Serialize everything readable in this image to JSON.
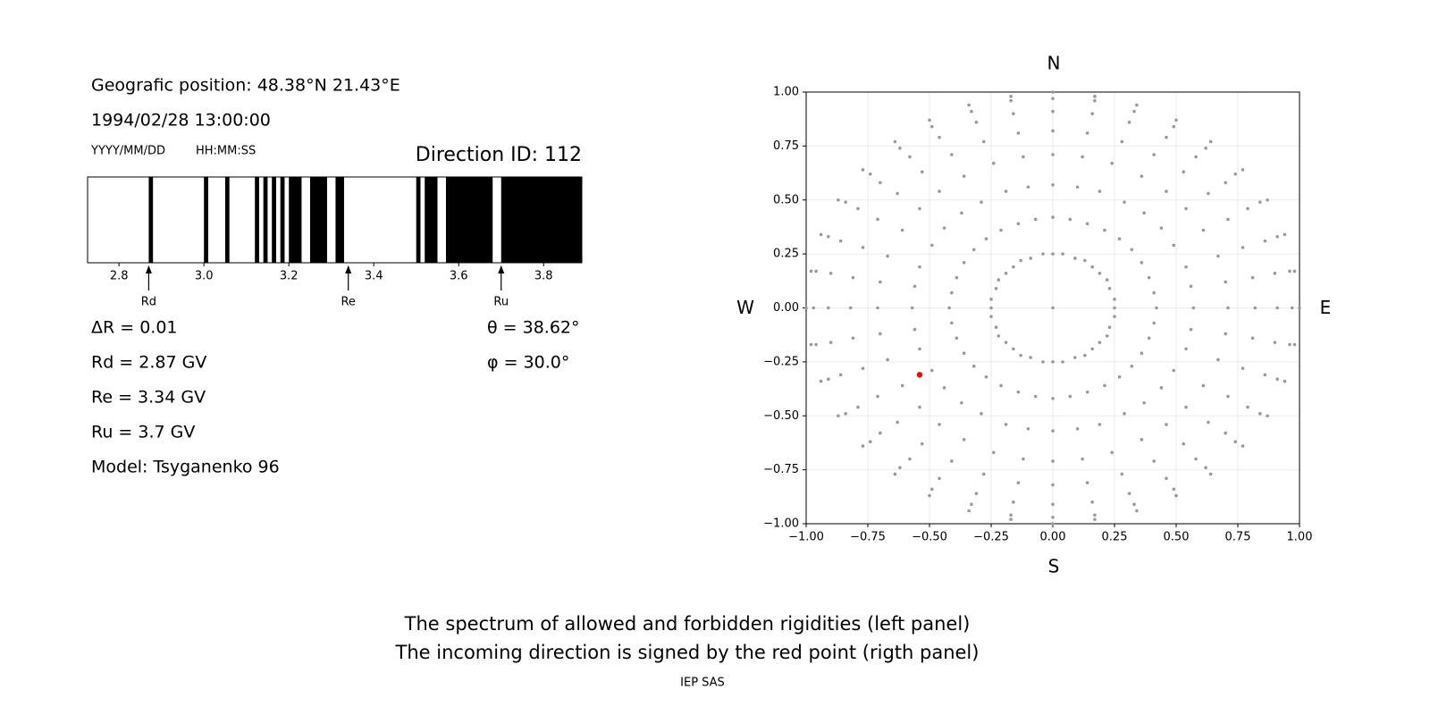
{
  "info": {
    "position": "Geografic position: 48.38°N 21.43°E",
    "datetime": "1994/02/28 13:00:00",
    "date_format": "YYYY/MM/DD",
    "time_format": "HH:MM:SS",
    "direction": "Direction ID: 112",
    "delta_r": "ΔR = 0.01",
    "rd": "Rd = 2.87 GV",
    "re": "Re = 3.34 GV",
    "ru": "Ru = 3.7 GV",
    "model": "Model: Tsyganenko 96",
    "theta": "θ = 38.62°",
    "phi": "φ = 30.0°"
  },
  "chart_data": [
    {
      "type": "spectrum",
      "xlim": [
        2.726,
        3.89
      ],
      "xticks": [
        2.8,
        {
          "value": 3,
          "label": "3.0"
        },
        3.2,
        3.4,
        3.6,
        3.8
      ],
      "color": "#000000",
      "forbidden": [
        [
          2.87,
          2.88
        ],
        [
          3.0,
          3.01
        ],
        [
          3.05,
          3.06
        ],
        [
          3.12,
          3.13
        ],
        [
          3.14,
          3.15
        ],
        [
          3.16,
          3.17
        ],
        [
          3.18,
          3.19
        ],
        [
          3.2,
          3.23
        ],
        [
          3.25,
          3.29
        ],
        [
          3.31,
          3.33
        ],
        [
          3.5,
          3.51
        ],
        [
          3.52,
          3.55
        ],
        [
          3.57,
          3.68
        ],
        [
          3.7,
          3.89
        ]
      ],
      "markers": [
        {
          "label": "Rd",
          "value": 2.87
        },
        {
          "label": "Re",
          "value": 3.34
        },
        {
          "label": "Ru",
          "value": 3.7
        }
      ]
    },
    {
      "type": "scatter",
      "labels": {
        "top": "N",
        "bottom": "S",
        "left": "W",
        "right": "E"
      },
      "xlim": [
        -1,
        1
      ],
      "ylim": [
        -1,
        1
      ],
      "xticks": [
        {
          "value": -1,
          "label": "−1.00"
        },
        {
          "value": -0.75,
          "label": "−0.75"
        },
        {
          "value": -0.5,
          "label": "−0.50"
        },
        {
          "value": -0.25,
          "label": "−0.25"
        },
        {
          "value": 0,
          "label": "0.00"
        },
        {
          "value": 0.25,
          "label": "0.25"
        },
        {
          "value": 0.5,
          "label": "0.50"
        },
        {
          "value": 0.75,
          "label": "0.75"
        },
        {
          "value": 1,
          "label": "1.00"
        }
      ],
      "yticks": [
        {
          "value": -1,
          "label": "−1.00"
        },
        {
          "value": -0.75,
          "label": "−0.75"
        },
        {
          "value": -0.5,
          "label": "−0.50"
        },
        {
          "value": -0.25,
          "label": "−0.25"
        },
        {
          "value": 0,
          "label": "0.00"
        },
        {
          "value": 0.25,
          "label": "0.25"
        },
        {
          "value": 0.5,
          "label": "0.50"
        },
        {
          "value": 0.75,
          "label": "0.75"
        },
        {
          "value": 1,
          "label": "1.00"
        }
      ],
      "grid": true,
      "color": "#999999",
      "x": [
        0.25,
        0.42,
        0.57,
        0.71,
        0.82,
        0.91,
        0.97,
        1,
        0.25,
        0.41,
        0.56,
        0.7,
        0.81,
        0.9,
        0.96,
        0.98,
        0.23,
        0.39,
        0.54,
        0.67,
        0.77,
        0.86,
        0.91,
        0.94,
        0.22,
        0.36,
        0.49,
        0.61,
        0.71,
        0.79,
        0.84,
        0.87,
        0.19,
        0.32,
        0.44,
        0.54,
        0.63,
        0.7,
        0.74,
        0.77,
        0.16,
        0.27,
        0.37,
        0.46,
        0.53,
        0.58,
        0.62,
        0.64,
        0.13,
        0.21,
        0.29,
        0.36,
        0.41,
        0.46,
        0.49,
        0.5,
        0.09,
        0.14,
        0.19,
        0.24,
        0.28,
        0.31,
        0.33,
        0.34,
        0.04,
        0.07,
        0.1,
        0.12,
        0.14,
        0.16,
        0.17,
        0.17,
        0,
        0,
        0,
        0,
        0,
        0,
        0,
        0,
        -0.04,
        -0.07,
        -0.1,
        -0.12,
        -0.14,
        -0.16,
        -0.17,
        -0.17,
        -0.09,
        -0.14,
        -0.19,
        -0.24,
        -0.28,
        -0.31,
        -0.33,
        -0.34,
        -0.13,
        -0.21,
        -0.29,
        -0.36,
        -0.41,
        -0.46,
        -0.49,
        -0.5,
        -0.16,
        -0.27,
        -0.37,
        -0.46,
        -0.53,
        -0.58,
        -0.62,
        -0.64,
        -0.19,
        -0.32,
        -0.44,
        -0.54,
        -0.63,
        -0.7,
        -0.74,
        -0.77,
        -0.22,
        -0.36,
        -0.49,
        -0.61,
        -0.71,
        -0.79,
        -0.84,
        -0.87,
        -0.23,
        -0.39,
        -0.54,
        -0.67,
        -0.77,
        -0.86,
        -0.91,
        -0.94,
        -0.25,
        -0.41,
        -0.56,
        -0.7,
        -0.81,
        -0.9,
        -0.96,
        -0.98,
        -0.25,
        -0.42,
        -0.57,
        -0.71,
        -0.82,
        -0.91,
        -0.97,
        -1,
        -0.25,
        -0.41,
        -0.56,
        -0.7,
        -0.81,
        -0.9,
        -0.96,
        -0.98,
        -0.23,
        -0.39,
        -0.54,
        -0.67,
        -0.77,
        -0.86,
        -0.91,
        -0.94,
        -0.22,
        -0.36,
        -0.49,
        -0.61,
        -0.71,
        -0.79,
        -0.84,
        -0.87,
        -0.19,
        -0.32,
        -0.44,
        -0.54,
        -0.63,
        -0.7,
        -0.74,
        -0.77,
        -0.16,
        -0.27,
        -0.37,
        -0.46,
        -0.53,
        -0.58,
        -0.62,
        -0.64,
        -0.13,
        -0.21,
        -0.29,
        -0.36,
        -0.41,
        -0.46,
        -0.49,
        -0.5,
        -0.09,
        -0.14,
        -0.19,
        -0.24,
        -0.28,
        -0.31,
        -0.33,
        -0.34,
        -0.04,
        -0.07,
        -0.1,
        -0.12,
        -0.14,
        -0.16,
        -0.17,
        -0.17,
        0,
        0,
        0,
        0,
        0,
        0,
        0,
        0,
        0.04,
        0.07,
        0.1,
        0.12,
        0.14,
        0.16,
        0.17,
        0.17,
        0.09,
        0.14,
        0.19,
        0.24,
        0.28,
        0.31,
        0.33,
        0.34,
        0.13,
        0.21,
        0.29,
        0.36,
        0.41,
        0.46,
        0.49,
        0.5,
        0.16,
        0.27,
        0.37,
        0.46,
        0.53,
        0.58,
        0.62,
        0.64,
        0.19,
        0.32,
        0.44,
        0.54,
        0.63,
        0.7,
        0.74,
        0.77,
        0.22,
        0.36,
        0.49,
        0.61,
        0.71,
        0.79,
        0.84,
        0.87,
        0.23,
        0.39,
        0.54,
        0.67,
        0.77,
        0.86,
        0.91,
        0.94,
        0.25,
        0.41,
        0.56,
        0.7,
        0.81,
        0.9,
        0.96,
        0.98,
        0
      ],
      "y": [
        0,
        0,
        0,
        0,
        0,
        0,
        0,
        0,
        0.04,
        0.07,
        0.1,
        0.12,
        0.14,
        0.16,
        0.17,
        0.17,
        0.09,
        0.14,
        0.19,
        0.24,
        0.28,
        0.31,
        0.33,
        0.34,
        0.13,
        0.21,
        0.29,
        0.36,
        0.41,
        0.46,
        0.49,
        0.5,
        0.16,
        0.27,
        0.37,
        0.46,
        0.53,
        0.58,
        0.62,
        0.64,
        0.19,
        0.32,
        0.44,
        0.54,
        0.63,
        0.7,
        0.74,
        0.77,
        0.22,
        0.36,
        0.49,
        0.61,
        0.71,
        0.79,
        0.84,
        0.87,
        0.23,
        0.39,
        0.54,
        0.67,
        0.77,
        0.86,
        0.91,
        0.94,
        0.25,
        0.41,
        0.56,
        0.7,
        0.81,
        0.9,
        0.96,
        0.98,
        0.25,
        0.42,
        0.57,
        0.71,
        0.82,
        0.91,
        0.97,
        1,
        0.25,
        0.41,
        0.56,
        0.7,
        0.81,
        0.9,
        0.96,
        0.98,
        0.23,
        0.39,
        0.54,
        0.67,
        0.77,
        0.86,
        0.91,
        0.94,
        0.22,
        0.36,
        0.49,
        0.61,
        0.71,
        0.79,
        0.84,
        0.87,
        0.19,
        0.32,
        0.44,
        0.54,
        0.63,
        0.7,
        0.74,
        0.77,
        0.16,
        0.27,
        0.37,
        0.46,
        0.53,
        0.58,
        0.62,
        0.64,
        0.13,
        0.21,
        0.29,
        0.36,
        0.41,
        0.46,
        0.49,
        0.5,
        0.09,
        0.14,
        0.19,
        0.24,
        0.28,
        0.31,
        0.33,
        0.34,
        0.04,
        0.07,
        0.1,
        0.12,
        0.14,
        0.16,
        0.17,
        0.17,
        0,
        0,
        0,
        0,
        0,
        0,
        0,
        0,
        -0.04,
        -0.07,
        -0.1,
        -0.12,
        -0.14,
        -0.16,
        -0.17,
        -0.17,
        -0.09,
        -0.14,
        -0.19,
        -0.24,
        -0.28,
        -0.31,
        -0.33,
        -0.34,
        -0.13,
        -0.21,
        -0.29,
        -0.36,
        -0.41,
        -0.46,
        -0.49,
        -0.5,
        -0.16,
        -0.27,
        -0.37,
        -0.46,
        -0.53,
        -0.58,
        -0.62,
        -0.64,
        -0.19,
        -0.32,
        -0.44,
        -0.54,
        -0.63,
        -0.7,
        -0.74,
        -0.77,
        -0.22,
        -0.36,
        -0.49,
        -0.61,
        -0.71,
        -0.79,
        -0.84,
        -0.87,
        -0.23,
        -0.39,
        -0.54,
        -0.67,
        -0.77,
        -0.86,
        -0.91,
        -0.94,
        -0.25,
        -0.41,
        -0.56,
        -0.7,
        -0.81,
        -0.9,
        -0.96,
        -0.98,
        -0.25,
        -0.42,
        -0.57,
        -0.71,
        -0.82,
        -0.91,
        -0.97,
        -1,
        -0.25,
        -0.41,
        -0.56,
        -0.7,
        -0.81,
        -0.9,
        -0.96,
        -0.98,
        -0.23,
        -0.39,
        -0.54,
        -0.67,
        -0.77,
        -0.86,
        -0.91,
        -0.94,
        -0.22,
        -0.36,
        -0.49,
        -0.61,
        -0.71,
        -0.79,
        -0.84,
        -0.87,
        -0.19,
        -0.32,
        -0.44,
        -0.54,
        -0.63,
        -0.7,
        -0.74,
        -0.77,
        -0.16,
        -0.27,
        -0.37,
        -0.46,
        -0.53,
        -0.58,
        -0.62,
        -0.64,
        -0.13,
        -0.21,
        -0.29,
        -0.36,
        -0.41,
        -0.46,
        -0.49,
        -0.5,
        -0.09,
        -0.14,
        -0.19,
        -0.24,
        -0.28,
        -0.31,
        -0.33,
        -0.34,
        -0.04,
        -0.07,
        -0.1,
        -0.12,
        -0.14,
        -0.16,
        -0.17,
        -0.17,
        0
      ],
      "highlight": {
        "x": -0.54,
        "y": -0.31,
        "color": "#ff0000"
      }
    }
  ],
  "caption": {
    "line1": "The spectrum of allowed and forbidden rigidities (left panel)",
    "line2": "The incoming direction is signed by the red point (rigth panel)",
    "credit": "IEP SAS"
  }
}
